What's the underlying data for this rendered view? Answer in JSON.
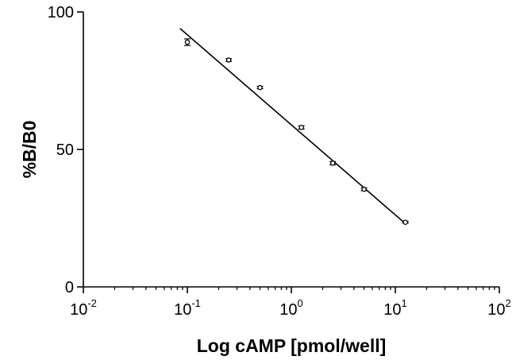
{
  "chart_data": {
    "type": "scatter",
    "title": "",
    "xlabel": "Log cAMP [pmol/well]",
    "ylabel": "%B/B0",
    "x_scale": "log10",
    "xlim": [
      0.01,
      100
    ],
    "ylim": [
      0,
      100
    ],
    "x_ticks": [
      {
        "base": "10",
        "exp": "-2",
        "value": 0.01
      },
      {
        "base": "10",
        "exp": "-1",
        "value": 0.1
      },
      {
        "base": "10",
        "exp": "0",
        "value": 1
      },
      {
        "base": "10",
        "exp": "1",
        "value": 10
      },
      {
        "base": "10",
        "exp": "2",
        "value": 100
      }
    ],
    "y_ticks": [
      {
        "label": "0",
        "value": 0
      },
      {
        "label": "50",
        "value": 50
      },
      {
        "label": "100",
        "value": 100
      }
    ],
    "grid": false,
    "series": [
      {
        "type": "scatter",
        "marker": "open-circle",
        "error_bars": true,
        "points": [
          {
            "x": 0.1,
            "y": 89,
            "err": 1.2
          },
          {
            "x": 0.25,
            "y": 82.5,
            "err": 0.5
          },
          {
            "x": 0.5,
            "y": 72.5,
            "err": 0.4
          },
          {
            "x": 1.25,
            "y": 58,
            "err": 0.6
          },
          {
            "x": 2.5,
            "y": 45,
            "err": 0.6
          },
          {
            "x": 5,
            "y": 35.5,
            "err": 0.5
          },
          {
            "x": 12.5,
            "y": 23.5,
            "err": 0.3
          }
        ]
      },
      {
        "type": "line",
        "fit": "linear-log",
        "points": [
          {
            "x": 0.085,
            "y": 94
          },
          {
            "x": 12.5,
            "y": 23
          }
        ]
      }
    ],
    "colors": {
      "marks": "#000000",
      "background": "#ffffff"
    }
  }
}
